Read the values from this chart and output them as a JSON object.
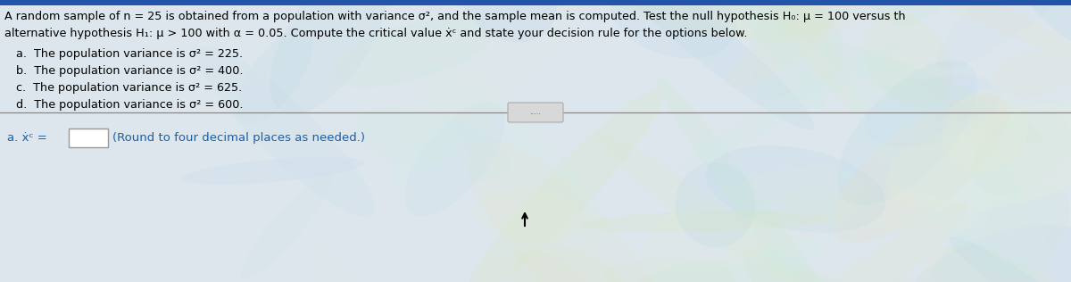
{
  "bg_color_left": "#e8eef2",
  "bg_color_right": "#c8dce8",
  "line1": "A random sample of n = 25 is obtained from a population with variance σ², and the sample mean is computed. Test the null hypothesis H₀: μ = 100 versus th",
  "line2": "alternative hypothesis H₁: μ > 100 with α = 0.05. Compute the critical value ẋᶜ and state your decision rule for the options below.",
  "item_a": "a.  The population variance is σ² = 225.",
  "item_b": "b.  The population variance is σ² = 400.",
  "item_c": "c.  The population variance is σ² = 625.",
  "item_d": "d.  The population variance is σ² = 600.",
  "answer_prefix": "a. ẋᶜ =",
  "answer_hint": "(Round to four decimal places as needed.)",
  "text_color": "#000000",
  "blue_text_color": "#1a5fa8",
  "separator_color": "#888888",
  "button_text": ".....",
  "button_bg": "#d8d8d8",
  "button_border": "#aaaaaa",
  "box_bg": "#ffffff",
  "box_border": "#999999",
  "top_bar_color": "#2255aa",
  "font_size_main": 9.2,
  "font_size_items": 9.2,
  "font_size_answer": 9.5
}
